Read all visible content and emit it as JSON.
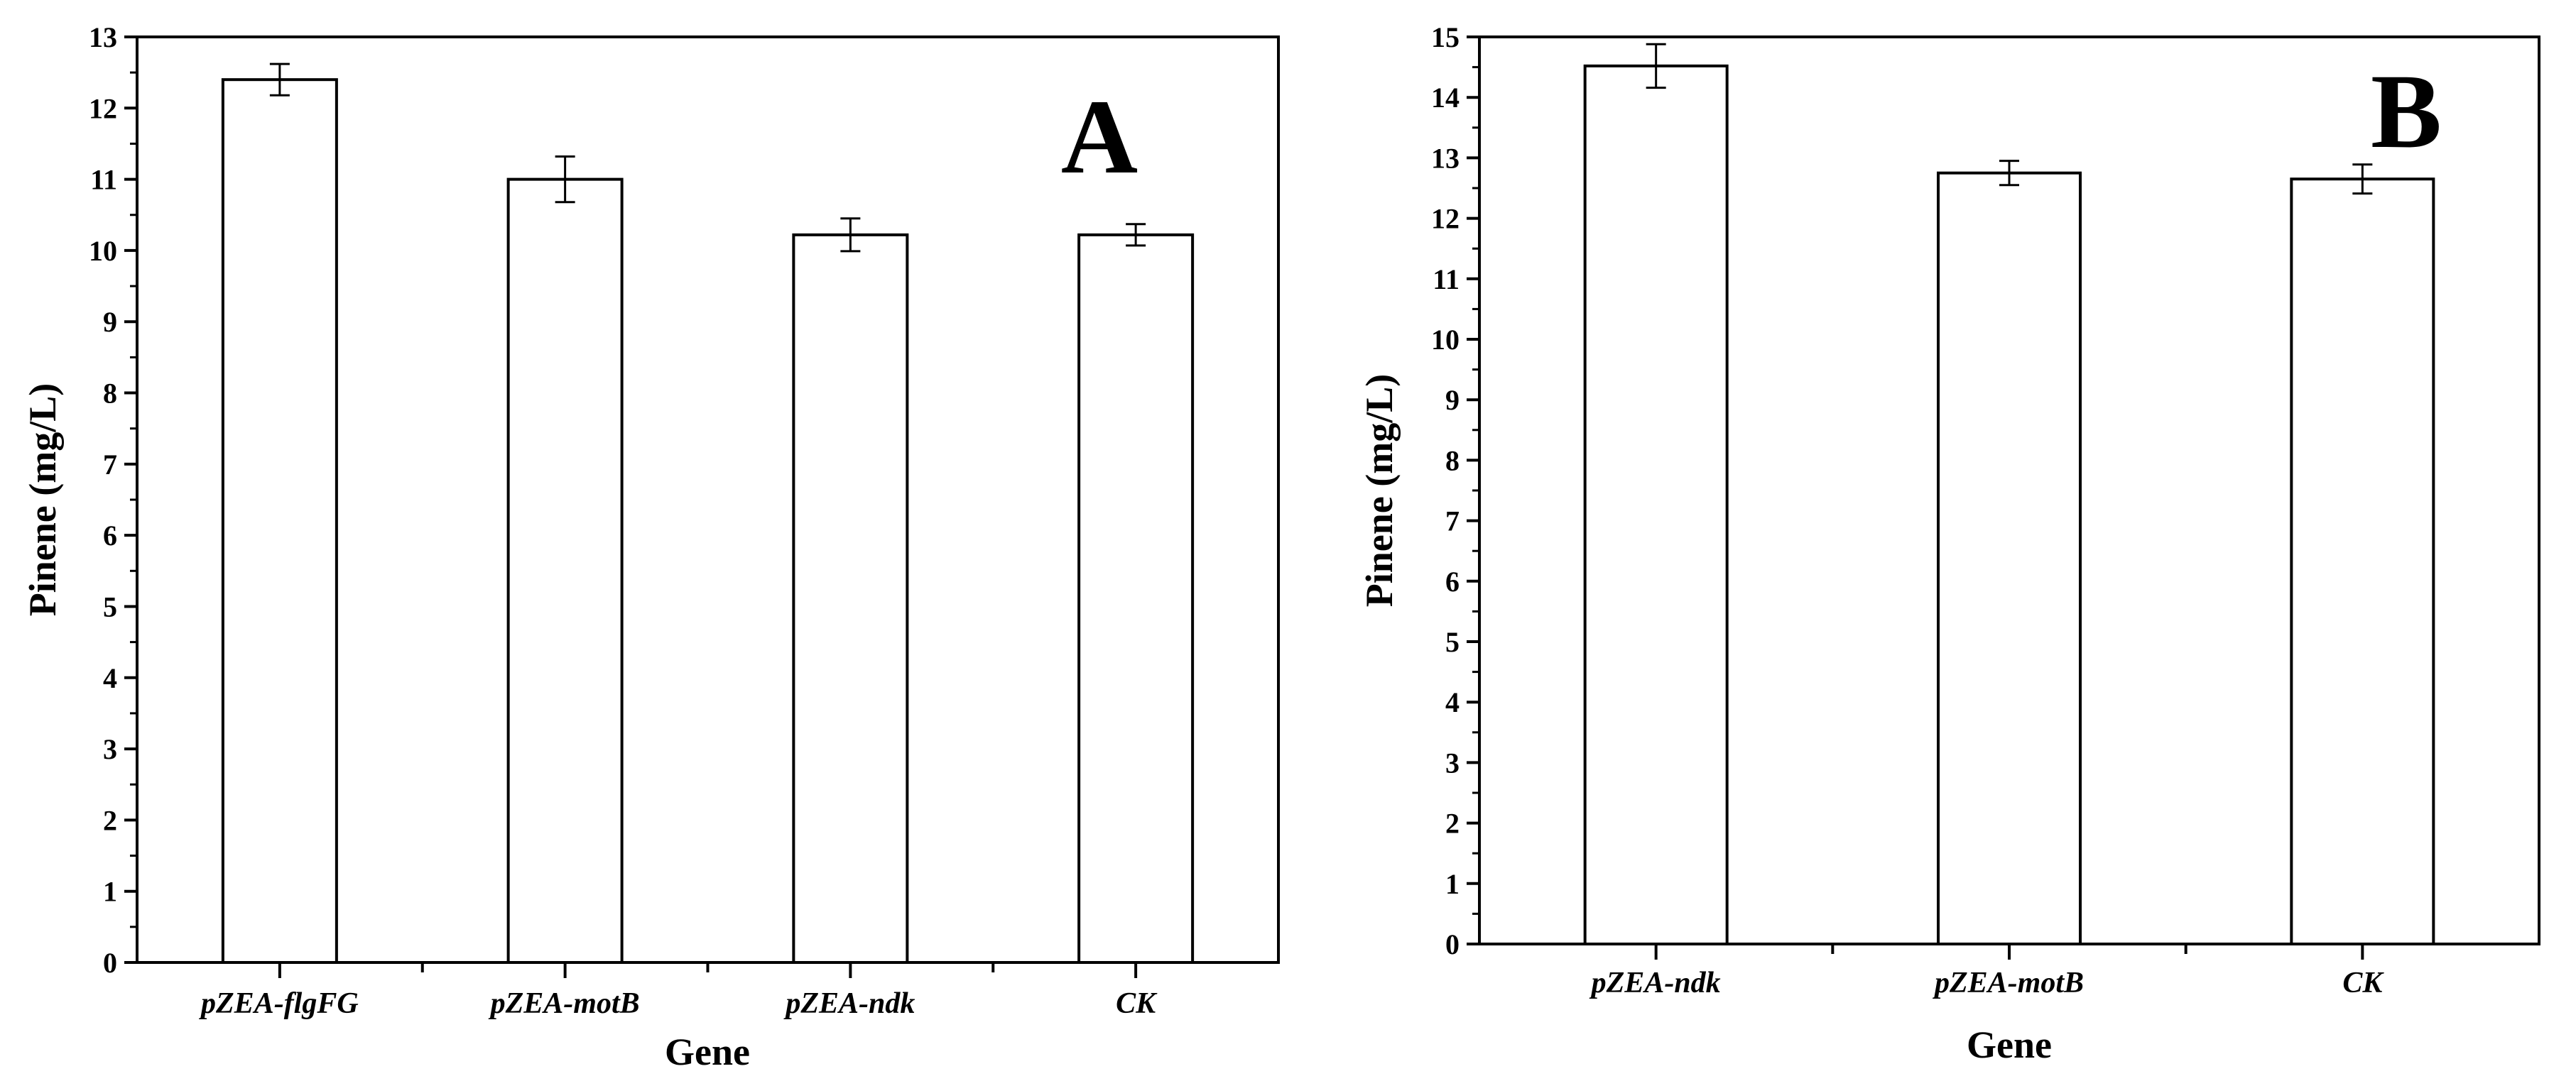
{
  "chart_data": [
    {
      "type": "bar",
      "panel_label": "A",
      "categories": [
        "pZEA-flgFG",
        "pZEA-motB",
        "pZEA-ndk",
        "CK"
      ],
      "values": [
        12.4,
        11.0,
        10.22,
        10.22
      ],
      "errors": [
        0.22,
        0.32,
        0.23,
        0.15
      ],
      "xlabel": "Gene",
      "ylabel": "Pinene (mg/L)",
      "ylim": [
        0,
        13
      ],
      "yticks": [
        "0",
        "1",
        "2",
        "3",
        "4",
        "5",
        "6",
        "7",
        "8",
        "9",
        "10",
        "11",
        "12",
        "13"
      ],
      "bar_fill": "#ffffff",
      "bar_stroke": "#000000",
      "grid": false,
      "legend": "none"
    },
    {
      "type": "bar",
      "panel_label": "B",
      "categories": [
        "pZEA-ndk",
        "pZEA-motB",
        "CK"
      ],
      "values": [
        14.52,
        12.75,
        12.65
      ],
      "errors": [
        0.36,
        0.2,
        0.24
      ],
      "xlabel": "Gene",
      "ylabel": "Pinene (mg/L)",
      "ylim": [
        0,
        15
      ],
      "yticks": [
        "0",
        "1",
        "2",
        "3",
        "4",
        "5",
        "6",
        "7",
        "8",
        "9",
        "10",
        "11",
        "12",
        "13",
        "14",
        "15"
      ],
      "bar_fill": "#ffffff",
      "bar_stroke": "#000000",
      "grid": false,
      "legend": "none"
    }
  ]
}
